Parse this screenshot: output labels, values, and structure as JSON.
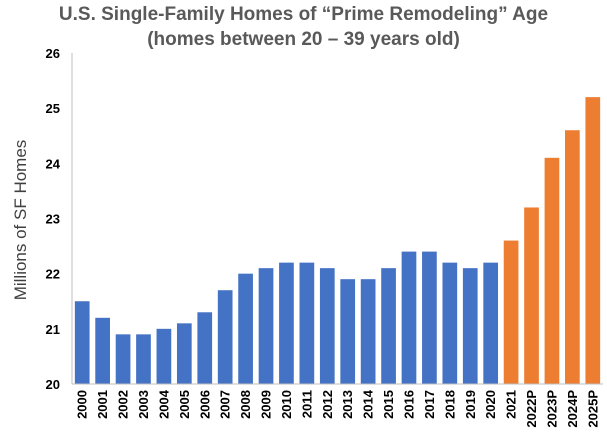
{
  "chart_data": {
    "type": "bar",
    "title": "U.S. Single-Family Homes of “Prime Remodeling” Age",
    "subtitle": "(homes between 20 – 39 years old)",
    "xlabel": "",
    "ylabel": "Millions of SF Homes",
    "ylim": [
      20,
      26
    ],
    "yticks": [
      20,
      21,
      22,
      23,
      24,
      25,
      26
    ],
    "grid": false,
    "legend": "none",
    "categories": [
      "2000",
      "2001",
      "2002",
      "2003",
      "2004",
      "2005",
      "2006",
      "2007",
      "2008",
      "2009",
      "2010",
      "2011",
      "2012",
      "2013",
      "2014",
      "2015",
      "2016",
      "2017",
      "2018",
      "2019",
      "2020",
      "2021",
      "2022P",
      "2023P",
      "2024P",
      "2025P"
    ],
    "values": [
      21.5,
      21.2,
      20.9,
      20.9,
      21.0,
      21.1,
      21.3,
      21.7,
      22.0,
      22.1,
      22.2,
      22.2,
      22.1,
      21.9,
      21.9,
      22.1,
      22.4,
      22.4,
      22.2,
      22.1,
      22.2,
      22.6,
      23.2,
      24.1,
      24.6,
      25.2
    ],
    "colors": {
      "historical": "#4472C4",
      "recent_projected": "#ED7D31"
    },
    "orange_from_index": 21
  }
}
